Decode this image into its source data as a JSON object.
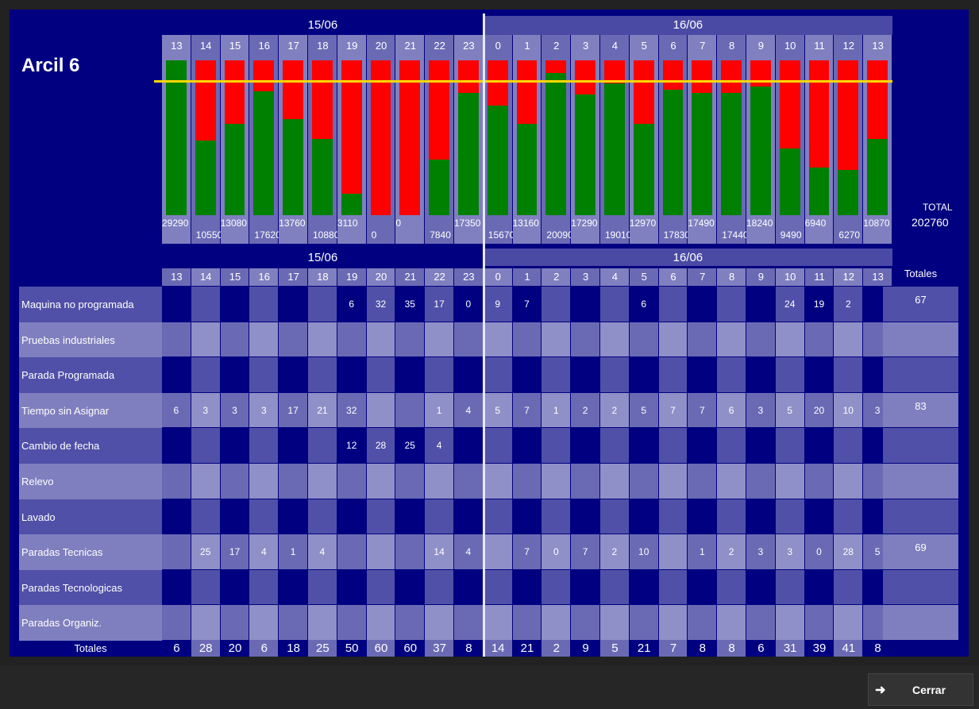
{
  "machine": "Arcil 6",
  "colors": {
    "background": "#000080",
    "green": "#008000",
    "red": "#ff0000",
    "target_line": "#ffd700"
  },
  "dates": {
    "day1": "15/06",
    "day2": "16/06"
  },
  "hours": [
    "13",
    "14",
    "15",
    "16",
    "17",
    "18",
    "19",
    "20",
    "21",
    "22",
    "23",
    "0",
    "1",
    "2",
    "3",
    "4",
    "5",
    "6",
    "7",
    "8",
    "9",
    "10",
    "11",
    "12",
    "13"
  ],
  "chart": {
    "green_fraction": [
      1.0,
      0.48,
      0.59,
      0.8,
      0.62,
      0.49,
      0.14,
      0.0,
      0.0,
      0.36,
      0.79,
      0.71,
      0.59,
      0.92,
      0.78,
      0.85,
      0.59,
      0.81,
      0.79,
      0.79,
      0.83,
      0.43,
      0.31,
      0.29,
      0.49
    ],
    "values": [
      "29290",
      "10550",
      "13080",
      "17620",
      "13760",
      "10880",
      "3110",
      "0",
      "0",
      "7840",
      "17350",
      "15670",
      "13160",
      "20090",
      "17290",
      "19010",
      "12970",
      "17830",
      "17490",
      "17440",
      "18240",
      "9490",
      "6940",
      "6270",
      "10870"
    ],
    "total_label": "TOTAL",
    "total_value": "202760"
  },
  "table": {
    "totals_header": "Totales",
    "rows": [
      {
        "label": "Maquina no programada",
        "cells": [
          "",
          "",
          "",
          "",
          "",
          "",
          "6",
          "32",
          "35",
          "17",
          "0",
          "9",
          "7",
          "",
          "",
          "",
          "6",
          "",
          "",
          "",
          "",
          "24",
          "19",
          "2",
          ""
        ],
        "total": "67"
      },
      {
        "label": "Pruebas industriales",
        "cells": [
          "",
          "",
          "",
          "",
          "",
          "",
          "",
          "",
          "",
          "",
          "",
          "",
          "",
          "",
          "",
          "",
          "",
          "",
          "",
          "",
          "",
          "",
          "",
          "",
          ""
        ],
        "total": ""
      },
      {
        "label": "Parada Programada",
        "cells": [
          "",
          "",
          "",
          "",
          "",
          "",
          "",
          "",
          "",
          "",
          "",
          "",
          "",
          "",
          "",
          "",
          "",
          "",
          "",
          "",
          "",
          "",
          "",
          "",
          ""
        ],
        "total": ""
      },
      {
        "label": "Tiempo sin Asignar",
        "cells": [
          "6",
          "3",
          "3",
          "3",
          "17",
          "21",
          "32",
          "",
          "",
          "1",
          "4",
          "5",
          "7",
          "1",
          "2",
          "2",
          "5",
          "7",
          "7",
          "6",
          "3",
          "5",
          "20",
          "10",
          "3"
        ],
        "total": "83"
      },
      {
        "label": "Cambio de fecha",
        "cells": [
          "",
          "",
          "",
          "",
          "",
          "",
          "12",
          "28",
          "25",
          "4",
          "",
          "",
          "",
          "",
          "",
          "",
          "",
          "",
          "",
          "",
          "",
          "",
          "",
          "",
          ""
        ],
        "total": ""
      },
      {
        "label": "Relevo",
        "cells": [
          "",
          "",
          "",
          "",
          "",
          "",
          "",
          "",
          "",
          "",
          "",
          "",
          "",
          "",
          "",
          "",
          "",
          "",
          "",
          "",
          "",
          "",
          "",
          "",
          ""
        ],
        "total": ""
      },
      {
        "label": "Lavado",
        "cells": [
          "",
          "",
          "",
          "",
          "",
          "",
          "",
          "",
          "",
          "",
          "",
          "",
          "",
          "",
          "",
          "",
          "",
          "",
          "",
          "",
          "",
          "",
          "",
          "",
          ""
        ],
        "total": ""
      },
      {
        "label": "Paradas Tecnicas",
        "cells": [
          "",
          "25",
          "17",
          "4",
          "1",
          "4",
          "",
          "",
          "",
          "14",
          "4",
          "",
          "7",
          "0",
          "7",
          "2",
          "10",
          "",
          "1",
          "2",
          "3",
          "3",
          "0",
          "28",
          "5"
        ],
        "total": "69"
      },
      {
        "label": "Paradas Tecnologicas",
        "cells": [
          "",
          "",
          "",
          "",
          "",
          "",
          "",
          "",
          "",
          "",
          "",
          "",
          "",
          "",
          "",
          "",
          "",
          "",
          "",
          "",
          "",
          "",
          "",
          "",
          ""
        ],
        "total": ""
      },
      {
        "label": "Paradas Organiz.",
        "cells": [
          "",
          "",
          "",
          "",
          "",
          "",
          "",
          "",
          "",
          "",
          "",
          "",
          "",
          "",
          "",
          "",
          "",
          "",
          "",
          "",
          "",
          "",
          "",
          "",
          ""
        ],
        "total": ""
      }
    ],
    "footer_label": "Totales",
    "column_totals": [
      "6",
      "28",
      "20",
      "6",
      "18",
      "25",
      "50",
      "60",
      "60",
      "37",
      "8",
      "14",
      "21",
      "2",
      "9",
      "5",
      "21",
      "7",
      "8",
      "8",
      "6",
      "31",
      "39",
      "41",
      "8"
    ]
  },
  "close_button": {
    "label": "Cerrar",
    "icon": "arrow-right-icon"
  }
}
